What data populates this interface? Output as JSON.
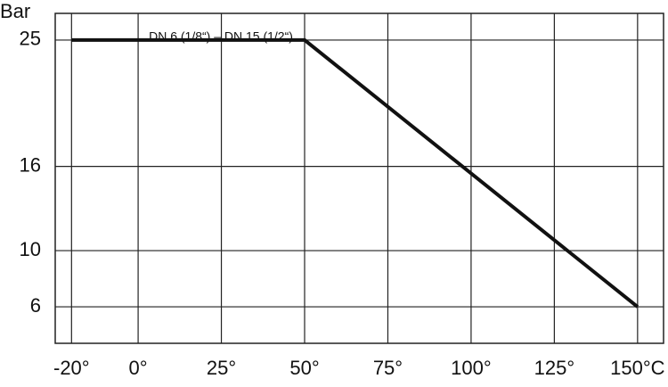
{
  "chart_data": {
    "type": "line",
    "y_label": "Bar",
    "annotation": "DN 6 (1/8“) – DN 15 (1/2“)",
    "x": [
      -20,
      50,
      150
    ],
    "series": [
      {
        "color": "#111111",
        "values": [
          25,
          25,
          6
        ]
      }
    ],
    "xlim": [
      -24.9,
      157.8
    ],
    "xticks": [
      {
        "value": -20,
        "label": "-20°"
      },
      {
        "value": 0,
        "label": "0°"
      },
      {
        "value": 25,
        "label": "25°"
      },
      {
        "value": 50,
        "label": "50°"
      },
      {
        "value": 75,
        "label": "75°"
      },
      {
        "value": 100,
        "label": "100°"
      },
      {
        "value": 125,
        "label": "125°"
      },
      {
        "value": 150,
        "label": "150°C"
      }
    ],
    "ylim": [
      3.4,
      26.9
    ],
    "yticks": [
      6,
      10,
      16,
      25
    ],
    "grid": true
  }
}
